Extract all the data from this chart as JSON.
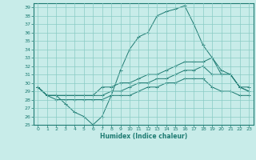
{
  "xlabel": "Humidex (Indice chaleur)",
  "ylabel": "",
  "bg_color": "#c8ece9",
  "grid_color": "#89cbc5",
  "line_color": "#1e7b72",
  "ylim": [
    25,
    39.5
  ],
  "xlim": [
    -0.5,
    23.5
  ],
  "yticks": [
    25,
    26,
    27,
    28,
    29,
    30,
    31,
    32,
    33,
    34,
    35,
    36,
    37,
    38,
    39
  ],
  "xticks": [
    0,
    1,
    2,
    3,
    4,
    5,
    6,
    7,
    8,
    9,
    10,
    11,
    12,
    13,
    14,
    15,
    16,
    17,
    18,
    19,
    20,
    21,
    22,
    23
  ],
  "series": [
    {
      "x": [
        0,
        1,
        2,
        3,
        4,
        5,
        6,
        7,
        8,
        9,
        10,
        11,
        12,
        13,
        14,
        15,
        16,
        17,
        18,
        19,
        20,
        21,
        22,
        23
      ],
      "y": [
        29.5,
        28.5,
        28.5,
        27.5,
        26.5,
        26.0,
        25.0,
        26.0,
        28.5,
        31.5,
        34.0,
        35.5,
        36.0,
        38.0,
        38.5,
        38.8,
        39.2,
        37.0,
        34.5,
        33.0,
        31.0,
        31.0,
        29.5,
        29.5
      ]
    },
    {
      "x": [
        0,
        1,
        2,
        3,
        4,
        5,
        6,
        7,
        8,
        9,
        10,
        11,
        12,
        13,
        14,
        15,
        16,
        17,
        18,
        19,
        20,
        21,
        22,
        23
      ],
      "y": [
        29.5,
        28.5,
        28.5,
        28.5,
        28.5,
        28.5,
        28.5,
        29.5,
        29.5,
        30.0,
        30.0,
        30.5,
        31.0,
        31.0,
        31.5,
        32.0,
        32.5,
        32.5,
        32.5,
        33.0,
        31.5,
        31.0,
        29.5,
        29.0
      ]
    },
    {
      "x": [
        0,
        1,
        2,
        3,
        4,
        5,
        6,
        7,
        8,
        9,
        10,
        11,
        12,
        13,
        14,
        15,
        16,
        17,
        18,
        19,
        20,
        21,
        22,
        23
      ],
      "y": [
        29.5,
        28.5,
        28.5,
        28.5,
        28.5,
        28.5,
        28.5,
        28.5,
        29.0,
        29.0,
        29.5,
        30.0,
        30.0,
        30.5,
        30.5,
        31.0,
        31.5,
        31.5,
        32.0,
        31.0,
        31.0,
        31.0,
        29.5,
        29.0
      ]
    },
    {
      "x": [
        0,
        1,
        2,
        3,
        4,
        5,
        6,
        7,
        8,
        9,
        10,
        11,
        12,
        13,
        14,
        15,
        16,
        17,
        18,
        19,
        20,
        21,
        22,
        23
      ],
      "y": [
        29.5,
        28.5,
        28.0,
        28.0,
        28.0,
        28.0,
        28.0,
        28.0,
        28.5,
        28.5,
        28.5,
        29.0,
        29.5,
        29.5,
        30.0,
        30.0,
        30.5,
        30.5,
        30.5,
        29.5,
        29.0,
        29.0,
        28.5,
        28.5
      ]
    }
  ]
}
